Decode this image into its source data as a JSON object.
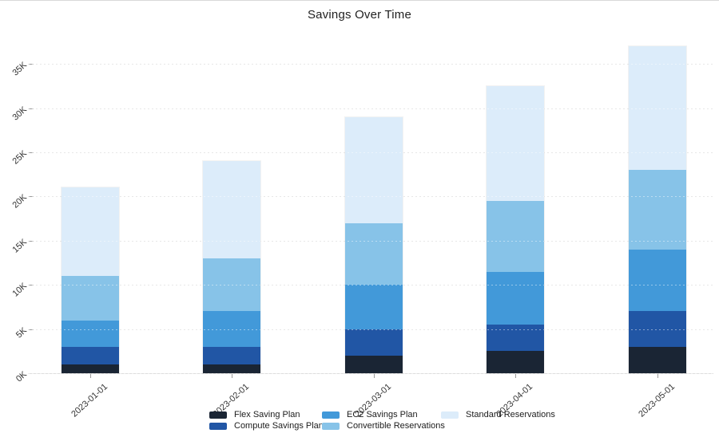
{
  "title": "Savings Over Time",
  "chart_data": {
    "type": "bar",
    "stacked": true,
    "title": "Savings Over Time",
    "xlabel": "",
    "ylabel": "",
    "categories": [
      "2023-01-01",
      "2023-02-01",
      "2023-03-01",
      "2023-04-01",
      "2023-05-01"
    ],
    "series": [
      {
        "name": "Flex Saving Plan",
        "color": "#1a2534",
        "values": [
          1000,
          1000,
          2000,
          2500,
          3000
        ]
      },
      {
        "name": "Compute Savings Plan",
        "color": "#2156a5",
        "values": [
          2000,
          2000,
          3000,
          3000,
          4000
        ]
      },
      {
        "name": "EC2 Savings Plan",
        "color": "#4299d9",
        "values": [
          3000,
          4000,
          5000,
          6000,
          7000
        ]
      },
      {
        "name": "Convertible Reservations",
        "color": "#87c3e8",
        "values": [
          5000,
          6000,
          7000,
          8000,
          9000
        ]
      },
      {
        "name": "Standard Reservations",
        "color": "#dcecfa",
        "values": [
          10000,
          11000,
          12000,
          13000,
          14000
        ]
      }
    ],
    "y_ticks": [
      {
        "label": "0K",
        "value": 0
      },
      {
        "label": "5K",
        "value": 5000
      },
      {
        "label": "10K",
        "value": 10000
      },
      {
        "label": "15K",
        "value": 15000
      },
      {
        "label": "20K",
        "value": 20000
      },
      {
        "label": "25K",
        "value": 25000
      },
      {
        "label": "30K",
        "value": 30000
      },
      {
        "label": "35K",
        "value": 35000
      }
    ],
    "ylim": [
      0,
      38500
    ],
    "grid": "horizontal-dotted",
    "legend_position": "bottom-center",
    "legend_columns": [
      [
        "Flex Saving Plan",
        "Compute Savings Plan"
      ],
      [
        "EC2 Savings Plan",
        "Convertible Reservations"
      ],
      [
        "Standard Reservations"
      ]
    ]
  }
}
